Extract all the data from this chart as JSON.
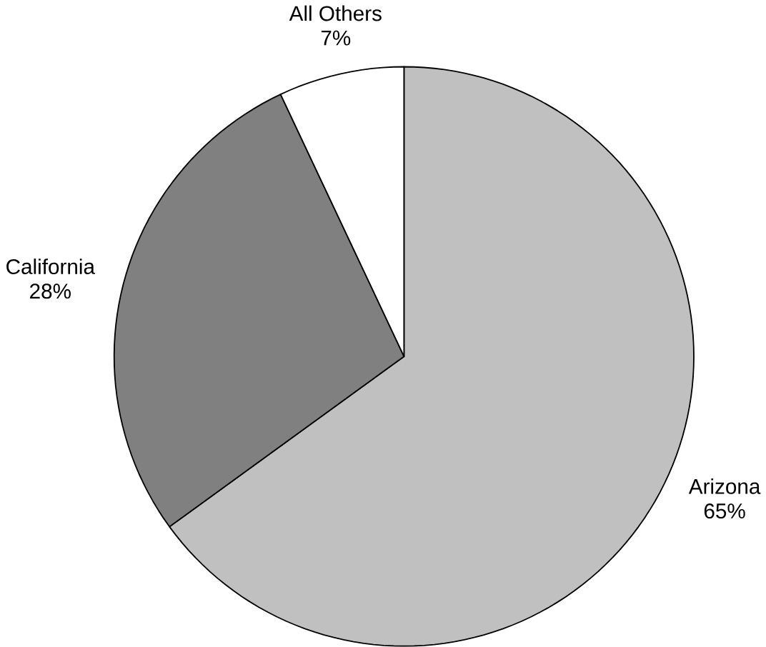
{
  "chart_data": {
    "type": "pie",
    "categories": [
      "Arizona",
      "California",
      "All  Others"
    ],
    "values": [
      65,
      28,
      7
    ],
    "colors": [
      "#c0c0c0",
      "#808080",
      "#ffffff"
    ],
    "value_labels": [
      "65%",
      "28%",
      "7%"
    ]
  }
}
